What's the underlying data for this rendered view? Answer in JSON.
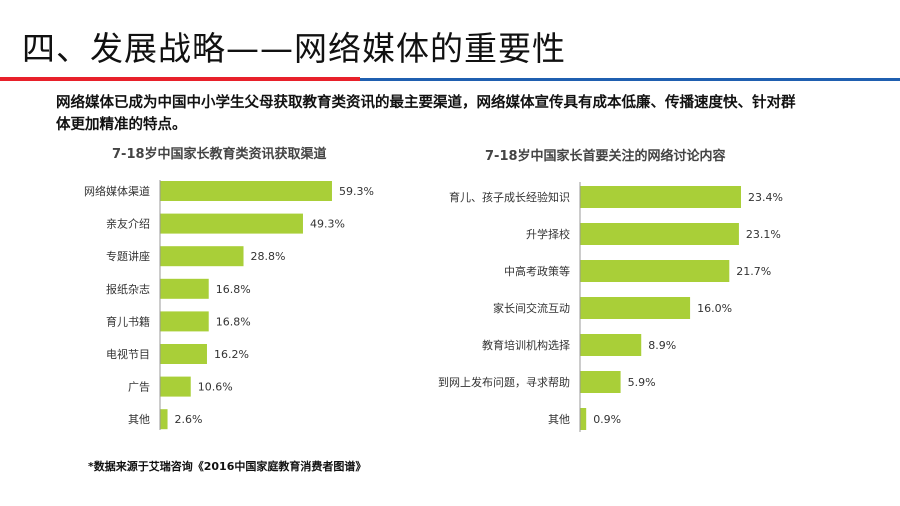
{
  "title": "四、发展战略——网络媒体的重要性",
  "summary": "网络媒体已成为中国中小学生父母获取教育类资讯的最主要渠道，网络媒体宣传具有成本低廉、传播速度快、针对群体更加精准的特点。",
  "source": "*数据来源于艾瑞咨询《2016中国家庭教育消费者图谱》",
  "colors": {
    "bar": "#a9cf38",
    "red": "#e8202a",
    "blue": "#1f5fb0"
  },
  "chart_data": [
    {
      "type": "bar",
      "orientation": "horizontal",
      "title": "7-18岁中国家长教育类资讯获取渠道",
      "categories": [
        "网络媒体渠道",
        "亲友介绍",
        "专题讲座",
        "报纸杂志",
        "育儿书籍",
        "电视节目",
        "广告",
        "其他"
      ],
      "values": [
        59.3,
        49.3,
        28.8,
        16.8,
        16.8,
        16.2,
        10.6,
        2.6
      ],
      "labels": [
        "59.3%",
        "49.3%",
        "28.8%",
        "16.8%",
        "16.8%",
        "16.2%",
        "10.6%",
        "2.6%"
      ],
      "unit": "%"
    },
    {
      "type": "bar",
      "orientation": "horizontal",
      "title": "7-18岁中国家长首要关注的网络讨论内容",
      "categories": [
        "育儿、孩子成长经验知识",
        "升学择校",
        "中高考政策等",
        "家长间交流互动",
        "教育培训机构选择",
        "到网上发布问题，寻求帮助",
        "其他"
      ],
      "values": [
        23.4,
        23.1,
        21.7,
        16.0,
        8.9,
        5.9,
        0.9
      ],
      "labels": [
        "23.4%",
        "23.1%",
        "21.7%",
        "16.0%",
        "8.9%",
        "5.9%",
        "0.9%"
      ],
      "unit": "%"
    }
  ]
}
